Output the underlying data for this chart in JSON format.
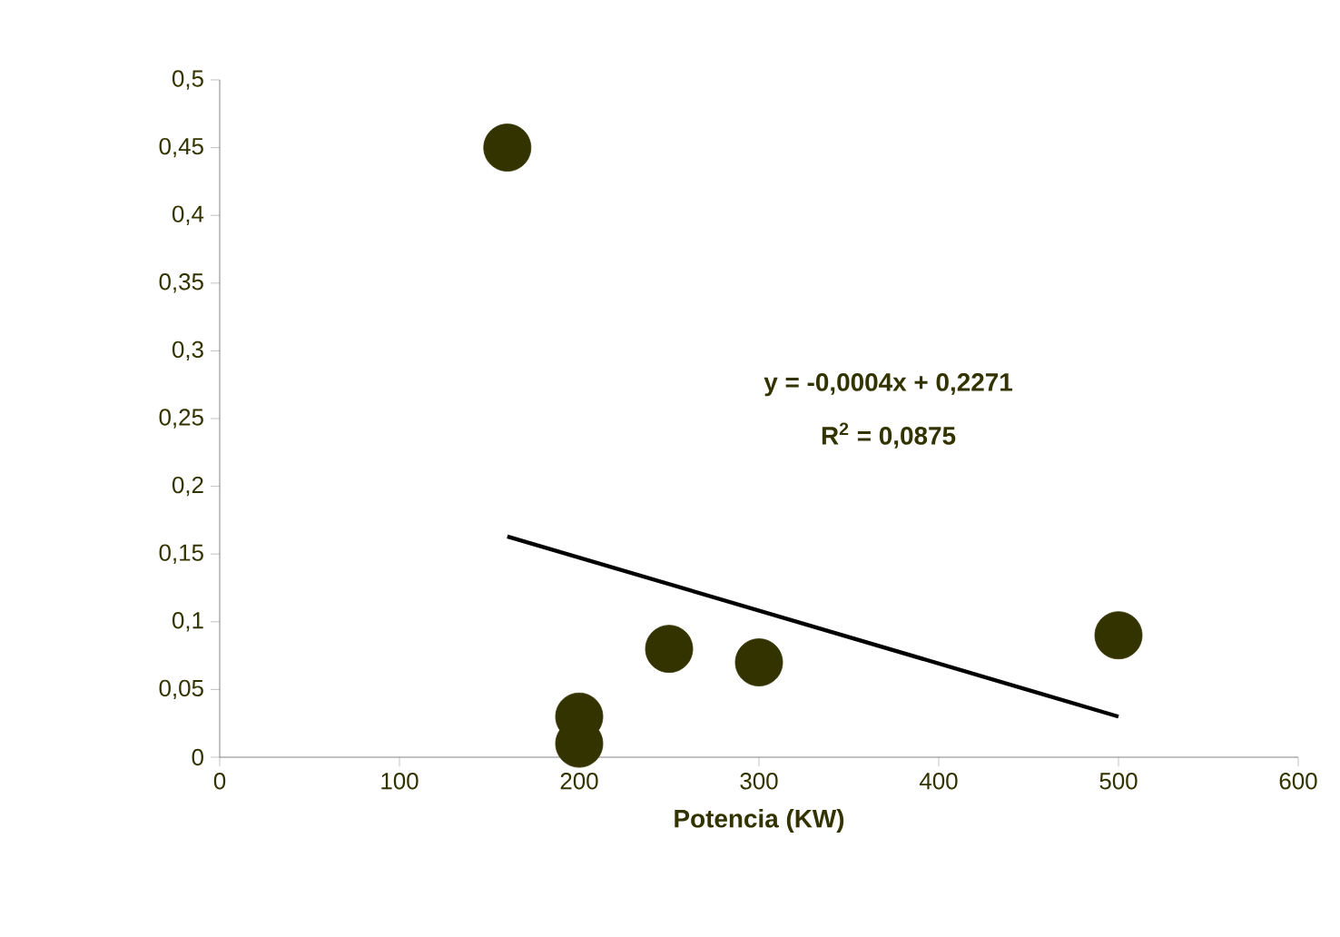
{
  "chart_data": {
    "type": "scatter",
    "xlabel": "Potencia (KW)",
    "xlim": [
      0,
      600
    ],
    "xticks": [
      0,
      100,
      200,
      300,
      400,
      500,
      600
    ],
    "ylim": [
      0,
      0.5
    ],
    "yticks": [
      {
        "value": 0,
        "label": "0"
      },
      {
        "value": 0.05,
        "label": "0,05"
      },
      {
        "value": 0.1,
        "label": "0,1"
      },
      {
        "value": 0.15,
        "label": "0,15"
      },
      {
        "value": 0.2,
        "label": "0,2"
      },
      {
        "value": 0.25,
        "label": "0,25"
      },
      {
        "value": 0.3,
        "label": "0,3"
      },
      {
        "value": 0.35,
        "label": "0,35"
      },
      {
        "value": 0.4,
        "label": "0,4"
      },
      {
        "value": 0.45,
        "label": "0,45"
      },
      {
        "value": 0.5,
        "label": "0,5"
      }
    ],
    "marker": "circle",
    "series": [
      {
        "type": "scatter",
        "color": "#333300",
        "x": [
          160,
          200,
          200,
          250,
          300,
          500
        ],
        "values": [
          0.45,
          0.03,
          0.01,
          0.08,
          0.07,
          0.09
        ]
      },
      {
        "type": "line",
        "marker": "none",
        "color": "#000000",
        "x": [
          160,
          500
        ],
        "values": [
          0.163,
          0.03
        ]
      }
    ],
    "annotations": [
      "y = -0,0004x + 0,2271",
      "R$^{2}$ = 0,0875"
    ]
  }
}
